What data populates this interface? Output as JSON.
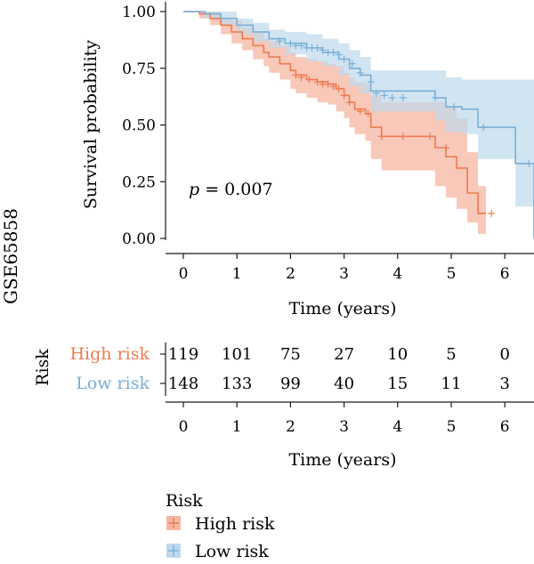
{
  "chart_data": {
    "type": "line",
    "dataset_label": "GSE65858",
    "xlabel": "Time (years)",
    "ylabel": "Survival probability",
    "xlim": [
      -0.3,
      6.6
    ],
    "ylim": [
      0,
      1
    ],
    "x_ticks": [
      0,
      1,
      2,
      3,
      4,
      5,
      6
    ],
    "y_ticks": [
      0.0,
      0.25,
      0.5,
      0.75,
      1.0
    ],
    "x_tick_labels": [
      "0",
      "1",
      "2",
      "3",
      "4",
      "5",
      "6"
    ],
    "y_tick_labels": [
      "0.00",
      "0.25",
      "0.50",
      "0.75",
      "1.00"
    ],
    "annotation": {
      "prefix": "p",
      "text": " = 0.007"
    },
    "grid": false,
    "series": [
      {
        "name": "High risk",
        "color": "#EE7B4F",
        "fill": "#F6B6A2",
        "x": [
          0,
          0.3,
          0.5,
          0.7,
          0.9,
          1.1,
          1.3,
          1.5,
          1.6,
          1.8,
          2.0,
          2.1,
          2.3,
          2.5,
          2.7,
          2.85,
          3.0,
          3.1,
          3.2,
          3.4,
          3.5,
          3.7,
          4.7,
          4.9,
          5.1,
          5.3,
          5.5,
          5.65
        ],
        "y": [
          1.0,
          0.99,
          0.97,
          0.94,
          0.91,
          0.88,
          0.85,
          0.82,
          0.8,
          0.77,
          0.74,
          0.72,
          0.7,
          0.69,
          0.68,
          0.66,
          0.63,
          0.6,
          0.57,
          0.55,
          0.49,
          0.45,
          0.4,
          0.36,
          0.31,
          0.2,
          0.11,
          0.11
        ],
        "upper": [
          1.0,
          1.0,
          1.0,
          0.97,
          0.96,
          0.93,
          0.91,
          0.88,
          0.87,
          0.85,
          0.82,
          0.8,
          0.79,
          0.78,
          0.77,
          0.76,
          0.73,
          0.71,
          0.69,
          0.68,
          0.63,
          0.6,
          0.6,
          0.58,
          0.53,
          0.38,
          0.23,
          0.23
        ],
        "lower": [
          1.0,
          0.97,
          0.94,
          0.9,
          0.86,
          0.83,
          0.79,
          0.76,
          0.73,
          0.7,
          0.66,
          0.64,
          0.62,
          0.6,
          0.59,
          0.56,
          0.53,
          0.49,
          0.46,
          0.43,
          0.35,
          0.3,
          0.23,
          0.18,
          0.13,
          0.07,
          0.02,
          0.02
        ],
        "censor_x": [
          2.1,
          2.2,
          2.35,
          2.5,
          2.6,
          2.7,
          2.8,
          2.9,
          3.0,
          3.1,
          3.3,
          3.45,
          3.7,
          4.1,
          4.6,
          4.9,
          5.75
        ],
        "censor_y": [
          0.72,
          0.71,
          0.7,
          0.69,
          0.68,
          0.68,
          0.67,
          0.66,
          0.63,
          0.6,
          0.56,
          0.55,
          0.45,
          0.45,
          0.45,
          0.4,
          0.11
        ]
      },
      {
        "name": "Low risk",
        "color": "#79B0D6",
        "fill": "#BED8EC",
        "x": [
          0,
          0.4,
          0.7,
          1.0,
          1.3,
          1.6,
          1.9,
          2.3,
          2.6,
          2.9,
          3.1,
          3.3,
          3.5,
          4.7,
          4.9,
          5.2,
          5.5,
          6.0,
          6.2,
          6.5,
          6.6
        ],
        "y": [
          1.0,
          0.99,
          0.97,
          0.94,
          0.91,
          0.88,
          0.86,
          0.84,
          0.82,
          0.79,
          0.75,
          0.72,
          0.65,
          0.62,
          0.58,
          0.57,
          0.49,
          0.49,
          0.33,
          0.33,
          0.0
        ],
        "upper": [
          1.0,
          1.0,
          1.0,
          0.97,
          0.95,
          0.92,
          0.91,
          0.9,
          0.88,
          0.86,
          0.83,
          0.8,
          0.74,
          0.74,
          0.71,
          0.7,
          0.7,
          0.7,
          0.7,
          0.7,
          0.7
        ],
        "lower": [
          1.0,
          0.97,
          0.94,
          0.9,
          0.87,
          0.84,
          0.81,
          0.78,
          0.76,
          0.72,
          0.67,
          0.64,
          0.56,
          0.52,
          0.47,
          0.46,
          0.35,
          0.35,
          0.14,
          0.14,
          0.14
        ],
        "censor_x": [
          1.8,
          2.0,
          2.1,
          2.2,
          2.3,
          2.4,
          2.5,
          2.6,
          2.7,
          2.8,
          2.9,
          3.0,
          3.15,
          3.3,
          3.5,
          3.6,
          3.75,
          3.9,
          4.1,
          4.7,
          5.05,
          5.6,
          6.45
        ],
        "censor_y": [
          0.87,
          0.86,
          0.85,
          0.85,
          0.84,
          0.84,
          0.84,
          0.83,
          0.82,
          0.82,
          0.81,
          0.79,
          0.77,
          0.73,
          0.69,
          0.64,
          0.63,
          0.62,
          0.62,
          0.62,
          0.58,
          0.49,
          0.33
        ]
      }
    ]
  },
  "risk_table": {
    "title": "Risk",
    "xlabel": "Time (years)",
    "time_points": [
      0,
      1,
      2,
      3,
      4,
      5,
      6
    ],
    "rows": [
      {
        "label": "High risk",
        "color": "#EE7B4F",
        "counts": [
          "119",
          "101",
          "75",
          "27",
          "10",
          "5",
          "0"
        ]
      },
      {
        "label": "Low risk",
        "color": "#79B0D6",
        "counts": [
          "148",
          "133",
          "99",
          "40",
          "15",
          "11",
          "3"
        ]
      }
    ]
  },
  "legend": {
    "title": "Risk",
    "items": [
      {
        "label": "High risk",
        "color": "#EE7B4F",
        "fill": "#F6B6A2"
      },
      {
        "label": "Low risk",
        "color": "#79B0D6",
        "fill": "#BED8EC"
      }
    ]
  }
}
